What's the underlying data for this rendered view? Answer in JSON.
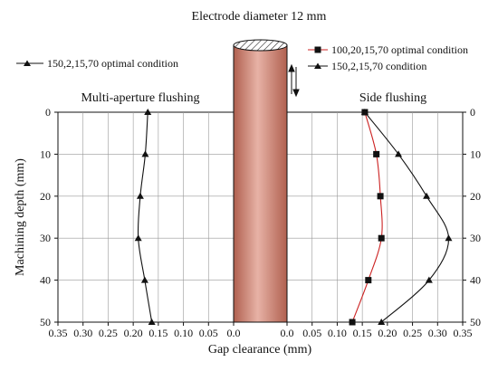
{
  "title": "Electrode diameter 12 mm",
  "ylabel": "Machining depth (mm)",
  "xlabel": "Gap clearance (mm)",
  "y_ticks": [
    "0",
    "10",
    "20",
    "30",
    "40",
    "50"
  ],
  "chart_data": [
    {
      "type": "line",
      "title": "Multi-aperture flushing",
      "xlabel": "Gap clearance (mm)",
      "ylabel": "Machining depth (mm)",
      "x_axis_reversed": true,
      "xlim": [
        0.35,
        0.0
      ],
      "ylim": [
        0,
        50
      ],
      "y_axis_inverted": true,
      "x_ticks": [
        "0.35",
        "0.30",
        "0.25",
        "0.20",
        "0.15",
        "0.10",
        "0.05",
        "0.0"
      ],
      "grid": true,
      "legend_position": "top-left",
      "series": [
        {
          "name": "150,2,15,70 optimal condition",
          "marker": "triangle",
          "color": "#111111",
          "points": [
            {
              "x": 0.171,
              "y": 0
            },
            {
              "x": 0.176,
              "y": 10
            },
            {
              "x": 0.186,
              "y": 20
            },
            {
              "x": 0.19,
              "y": 30
            },
            {
              "x": 0.177,
              "y": 40
            },
            {
              "x": 0.163,
              "y": 50
            }
          ]
        }
      ]
    },
    {
      "type": "line",
      "title": "Side flushing",
      "xlabel": "Gap clearance (mm)",
      "ylabel": "Machining depth (mm)",
      "xlim": [
        0.0,
        0.35
      ],
      "ylim": [
        0,
        50
      ],
      "y_axis_inverted": true,
      "x_ticks": [
        "0.0",
        "0.05",
        "0.10",
        "0.15",
        "0.20",
        "0.25",
        "0.30",
        "0.35"
      ],
      "grid": true,
      "legend_position": "top-right",
      "series": [
        {
          "name": "100,20,15,70 optimal condition",
          "marker": "square",
          "color": "#cc2222",
          "points": [
            {
              "x": 0.155,
              "y": 0
            },
            {
              "x": 0.178,
              "y": 10
            },
            {
              "x": 0.186,
              "y": 20
            },
            {
              "x": 0.188,
              "y": 30
            },
            {
              "x": 0.162,
              "y": 40
            },
            {
              "x": 0.13,
              "y": 50
            }
          ]
        },
        {
          "name": "150,2,15,70 condition",
          "marker": "triangle",
          "color": "#111111",
          "points": [
            {
              "x": 0.155,
              "y": 0
            },
            {
              "x": 0.222,
              "y": 10
            },
            {
              "x": 0.278,
              "y": 20
            },
            {
              "x": 0.322,
              "y": 30
            },
            {
              "x": 0.283,
              "y": 40
            },
            {
              "x": 0.188,
              "y": 50
            }
          ]
        }
      ]
    }
  ],
  "electrode_color": "#d7887a"
}
